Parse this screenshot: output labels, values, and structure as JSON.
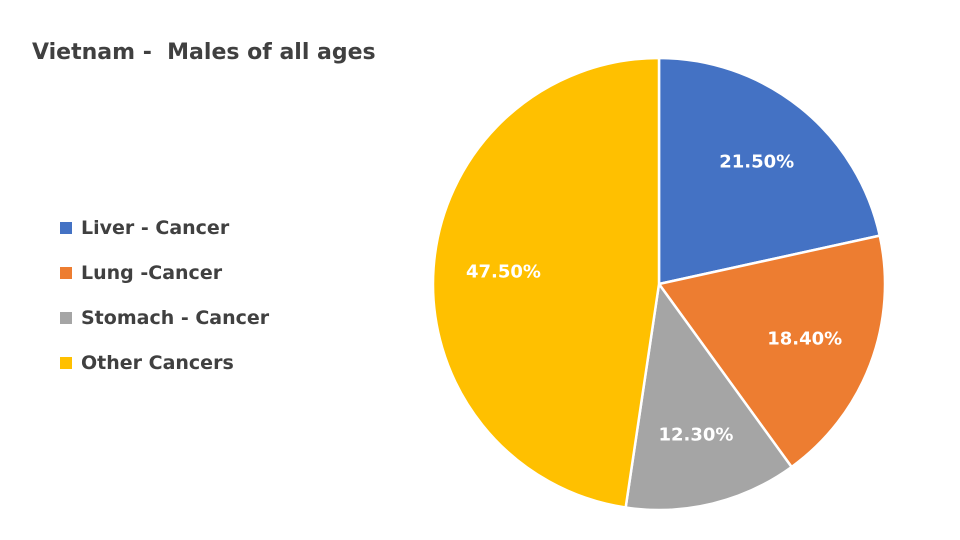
{
  "chart_data": {
    "type": "pie",
    "title": "Vietnam -  Males of all ages",
    "legend_position": "left",
    "slices": [
      {
        "label": "Liver - Cancer",
        "value": 21.5,
        "display": "21.50%",
        "color": "#4472C4"
      },
      {
        "label": "Lung -Cancer",
        "value": 18.4,
        "display": "18.40%",
        "color": "#ED7D31"
      },
      {
        "label": "Stomach - Cancer",
        "value": 12.3,
        "display": "12.30%",
        "color": "#A5A5A5"
      },
      {
        "label": "Other Cancers",
        "value": 47.5,
        "display": "47.50%",
        "color": "#FFC000"
      }
    ]
  }
}
